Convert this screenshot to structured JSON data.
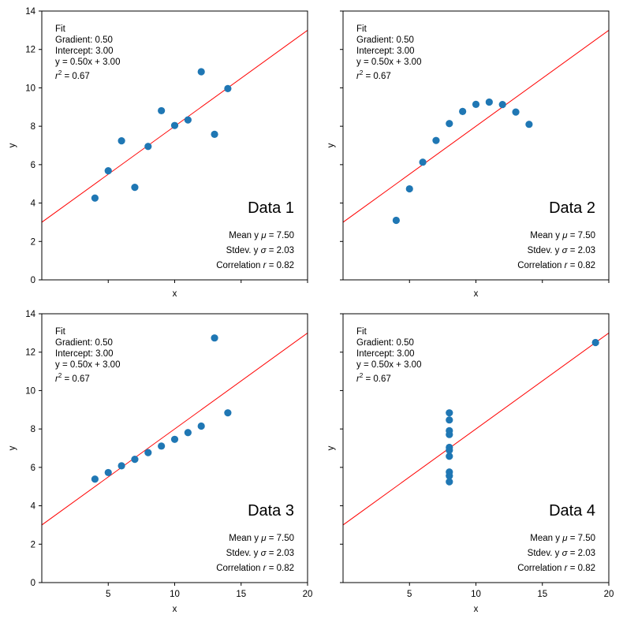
{
  "colors": {
    "points": "#1f77b4",
    "fit_line": "#ff0000",
    "axes": "#000000"
  },
  "chart_data": [
    {
      "type": "scatter",
      "panel_label": "Data 1",
      "x": [
        10,
        8,
        13,
        9,
        11,
        14,
        6,
        4,
        12,
        7,
        5
      ],
      "y": [
        8.04,
        6.95,
        7.58,
        8.81,
        8.33,
        9.96,
        7.24,
        4.26,
        10.84,
        4.82,
        5.68
      ],
      "xlim": [
        0,
        20
      ],
      "ylim": [
        0,
        14
      ],
      "xticks": [],
      "yticks": [
        "0",
        "2",
        "4",
        "6",
        "8",
        "10",
        "12",
        "14"
      ],
      "xlabel": "x",
      "ylabel": "y",
      "fit": {
        "title": "Fit",
        "gradient": "Gradient: 0.50",
        "intercept": "Intercept: 3.00",
        "equation": "y = 0.50x + 3.00",
        "r2_symbol": "r",
        "r2_exp": "2",
        "r2_value": " = 0.67",
        "slope": 0.5,
        "intercept_value": 3.0
      },
      "stats": {
        "mean_prefix": "Mean y ",
        "mean_sym": "μ",
        "mean_value": " = 7.50",
        "stdev_prefix": "Stdev. y ",
        "stdev_sym": "σ",
        "stdev_value": " = 2.03",
        "corr_prefix": "Correlation ",
        "corr_sym": "r",
        "corr_value": " = 0.82"
      }
    },
    {
      "type": "scatter",
      "panel_label": "Data 2",
      "x": [
        10,
        8,
        13,
        9,
        11,
        14,
        6,
        4,
        12,
        7,
        5
      ],
      "y": [
        9.14,
        8.14,
        8.74,
        8.77,
        9.26,
        8.1,
        6.13,
        3.1,
        9.13,
        7.26,
        4.74
      ],
      "xlim": [
        0,
        20
      ],
      "ylim": [
        0,
        14
      ],
      "xticks": [],
      "yticks": [],
      "xlabel": "x",
      "ylabel": "y",
      "fit": {
        "title": "Fit",
        "gradient": "Gradient: 0.50",
        "intercept": "Intercept: 3.00",
        "equation": "y = 0.50x + 3.00",
        "r2_symbol": "r",
        "r2_exp": "2",
        "r2_value": " = 0.67",
        "slope": 0.5,
        "intercept_value": 3.0
      },
      "stats": {
        "mean_prefix": "Mean y ",
        "mean_sym": "μ",
        "mean_value": " = 7.50",
        "stdev_prefix": "Stdev. y ",
        "stdev_sym": "σ",
        "stdev_value": " = 2.03",
        "corr_prefix": "Correlation ",
        "corr_sym": "r",
        "corr_value": " = 0.82"
      }
    },
    {
      "type": "scatter",
      "panel_label": "Data 3",
      "x": [
        10,
        8,
        13,
        9,
        11,
        14,
        6,
        4,
        12,
        7,
        5
      ],
      "y": [
        7.46,
        6.77,
        12.74,
        7.11,
        7.81,
        8.84,
        6.08,
        5.39,
        8.15,
        6.42,
        5.73
      ],
      "xlim": [
        0,
        20
      ],
      "ylim": [
        0,
        14
      ],
      "xticks": [
        "5",
        "10",
        "15",
        "20"
      ],
      "yticks": [
        "0",
        "2",
        "4",
        "6",
        "8",
        "10",
        "12",
        "14"
      ],
      "xlabel": "x",
      "ylabel": "y",
      "fit": {
        "title": "Fit",
        "gradient": "Gradient: 0.50",
        "intercept": "Intercept: 3.00",
        "equation": "y = 0.50x + 3.00",
        "r2_symbol": "r",
        "r2_exp": "2",
        "r2_value": " = 0.67",
        "slope": 0.5,
        "intercept_value": 3.0
      },
      "stats": {
        "mean_prefix": "Mean y ",
        "mean_sym": "μ",
        "mean_value": " = 7.50",
        "stdev_prefix": "Stdev. y ",
        "stdev_sym": "σ",
        "stdev_value": " = 2.03",
        "corr_prefix": "Correlation ",
        "corr_sym": "r",
        "corr_value": " = 0.82"
      }
    },
    {
      "type": "scatter",
      "panel_label": "Data 4",
      "x": [
        8,
        8,
        8,
        8,
        8,
        8,
        8,
        19,
        8,
        8,
        8
      ],
      "y": [
        6.58,
        5.76,
        7.71,
        8.84,
        8.47,
        7.04,
        5.25,
        12.5,
        5.56,
        7.91,
        6.89
      ],
      "xlim": [
        0,
        20
      ],
      "ylim": [
        0,
        14
      ],
      "xticks": [
        "5",
        "10",
        "15",
        "20"
      ],
      "yticks": [],
      "xlabel": "x",
      "ylabel": "y",
      "fit": {
        "title": "Fit",
        "gradient": "Gradient: 0.50",
        "intercept": "Intercept: 3.00",
        "equation": "y = 0.50x + 3.00",
        "r2_symbol": "r",
        "r2_exp": "2",
        "r2_value": " = 0.67",
        "slope": 0.5,
        "intercept_value": 3.0
      },
      "stats": {
        "mean_prefix": "Mean y ",
        "mean_sym": "μ",
        "mean_value": " = 7.50",
        "stdev_prefix": "Stdev. y ",
        "stdev_sym": "σ",
        "stdev_value": " = 2.03",
        "corr_prefix": "Correlation ",
        "corr_sym": "r",
        "corr_value": " = 0.82"
      }
    }
  ]
}
